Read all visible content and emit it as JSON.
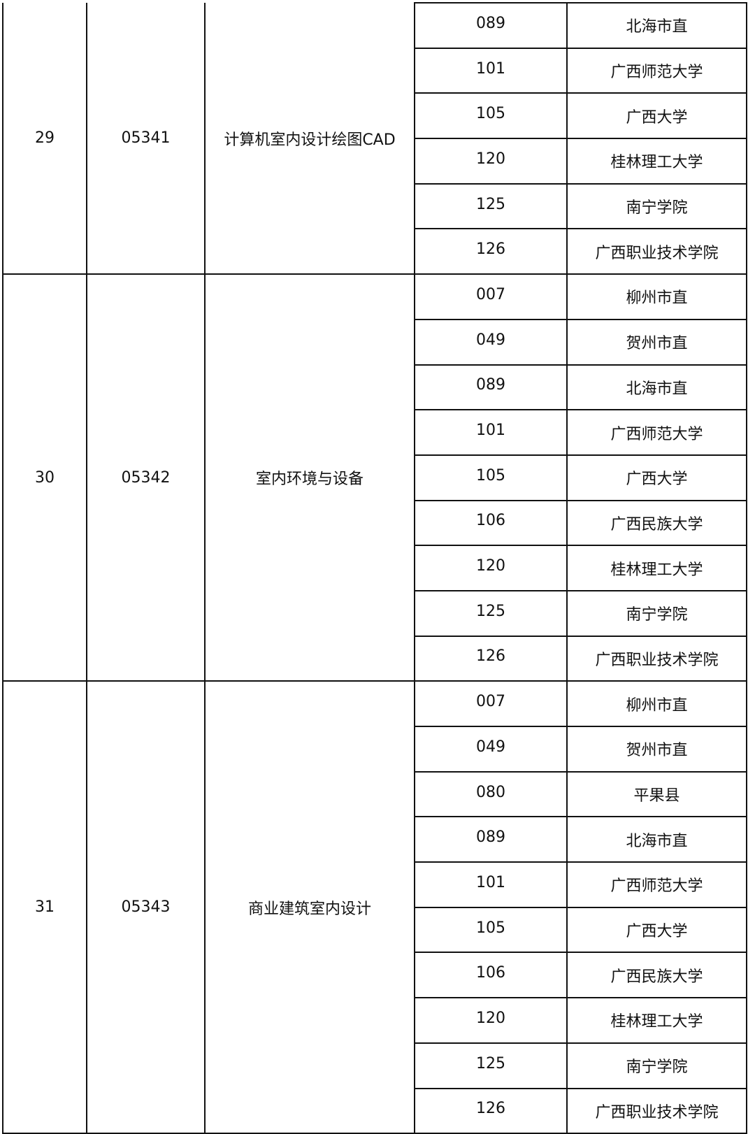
{
  "groups": [
    {
      "index": "29",
      "code": "05341",
      "course": "计算机室内设计绘图CAD",
      "schools": [
        {
          "code": "089",
          "name": "北海市直"
        },
        {
          "code": "101",
          "name": "广西师范大学"
        },
        {
          "code": "105",
          "name": "广西大学"
        },
        {
          "code": "120",
          "name": "桂林理工大学"
        },
        {
          "code": "125",
          "name": "南宁学院"
        },
        {
          "code": "126",
          "name": "广西职业技术学院"
        }
      ]
    },
    {
      "index": "30",
      "code": "05342",
      "course": "室内环境与设备",
      "schools": [
        {
          "code": "007",
          "name": "柳州市直"
        },
        {
          "code": "049",
          "name": "贺州市直"
        },
        {
          "code": "089",
          "name": "北海市直"
        },
        {
          "code": "101",
          "name": "广西师范大学"
        },
        {
          "code": "105",
          "name": "广西大学"
        },
        {
          "code": "106",
          "name": "广西民族大学"
        },
        {
          "code": "120",
          "name": "桂林理工大学"
        },
        {
          "code": "125",
          "name": "南宁学院"
        },
        {
          "code": "126",
          "name": "广西职业技术学院"
        }
      ]
    },
    {
      "index": "31",
      "code": "05343",
      "course": "商业建筑室内设计",
      "schools": [
        {
          "code": "007",
          "name": "柳州市直"
        },
        {
          "code": "049",
          "name": "贺州市直"
        },
        {
          "code": "080",
          "name": "平果县"
        },
        {
          "code": "089",
          "name": "北海市直"
        },
        {
          "code": "101",
          "name": "广西师范大学"
        },
        {
          "code": "105",
          "name": "广西大学"
        },
        {
          "code": "106",
          "name": "广西民族大学"
        },
        {
          "code": "120",
          "name": "桂林理工大学"
        },
        {
          "code": "125",
          "name": "南宁学院"
        },
        {
          "code": "126",
          "name": "广西职业技术学院"
        }
      ]
    }
  ]
}
